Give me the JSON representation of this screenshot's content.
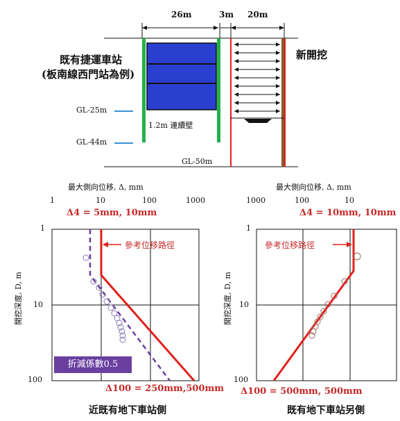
{
  "top": {
    "dims": [
      "26m",
      "3m",
      "20m"
    ],
    "station_line1": "既有捷運車站",
    "station_line2": "(板南線西門站為例)",
    "new_excavation": "新開挖",
    "gl25": "GL-25m",
    "gl44": "GL-44m",
    "gl50": "GL-50m",
    "wall_label": "1.2m 連續壁"
  },
  "left_panel": {
    "axis_title": "最大側向位移, Δ, mm",
    "x_ticks": [
      "1",
      "10",
      "100",
      "1000"
    ],
    "y_label": "開挖深度, D, m",
    "y_ticks": [
      "1",
      "10",
      "100"
    ],
    "delta4": "Δ4 = 5mm, 10mm",
    "ref_label": "參考位移路徑",
    "reduction": "折減係數0.5",
    "delta100": "Δ100 = 250mm,500mm",
    "caption": "近既有地下車站側"
  },
  "right_panel": {
    "axis_title": "最大側向位移, Δ, mm",
    "x_ticks": [
      "1000",
      "100",
      "10"
    ],
    "y_label": "開挖深度, D, m",
    "y_ticks": [
      "1",
      "10",
      "100"
    ],
    "delta4": "Δ4 = 10mm, 10mm",
    "ref_label": "參考位移路徑",
    "delta100": "Δ100 = 500mm, 500mm",
    "caption": "既有地下車站另側"
  },
  "colors": {
    "station_fill": "#2a3fcf",
    "wall_green": "#22b14c",
    "reference_red": "#e0201b",
    "purple": "#6a3fa0",
    "gl_marker": "#3b8fd6"
  }
}
